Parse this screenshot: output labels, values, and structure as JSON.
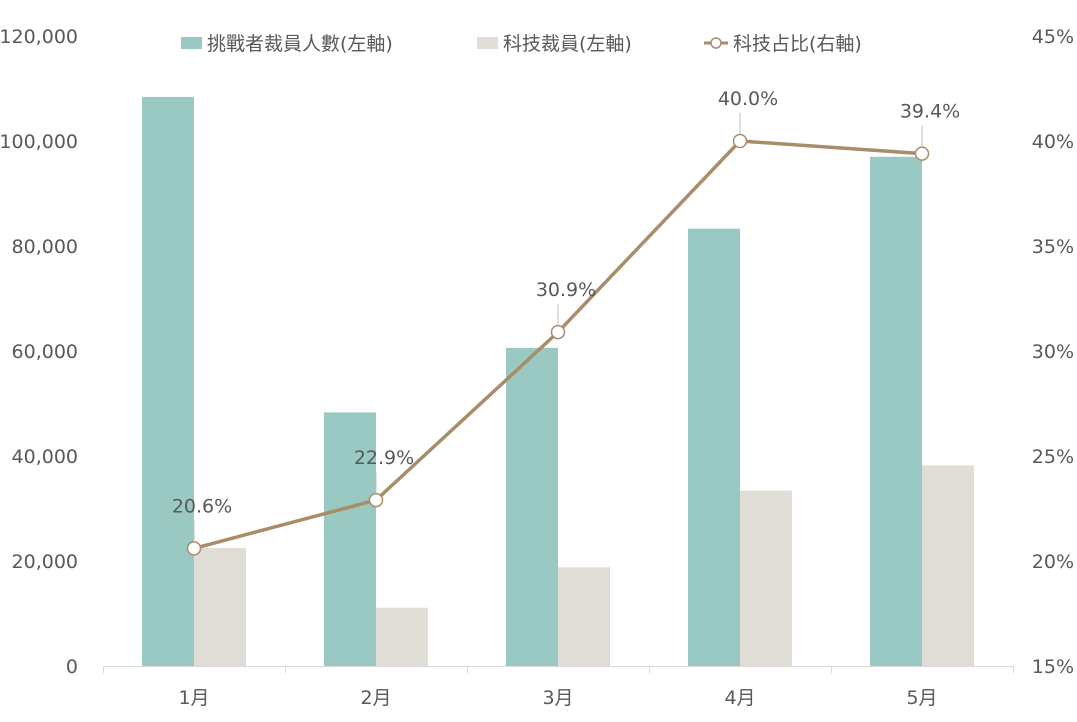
{
  "chart_data": {
    "type": "bar",
    "combo": "bar-line-dual-axis",
    "categories": [
      "1月",
      "2月",
      "3月",
      "4月",
      "5月"
    ],
    "series": [
      {
        "name": "挑戰者裁員人數(左軸)",
        "type": "bar",
        "axis": "left",
        "color": "#9ac8c3",
        "values": [
          108400,
          48300,
          60600,
          83300,
          97000
        ]
      },
      {
        "name": "科技裁員(左軸)",
        "type": "bar",
        "axis": "left",
        "color": "#e0ddd7",
        "values": [
          22500,
          11100,
          18800,
          33400,
          38200
        ]
      },
      {
        "name": "科技占比(右軸)",
        "type": "line",
        "axis": "right",
        "color": "#a78e68",
        "values": [
          20.6,
          22.9,
          30.9,
          40.0,
          39.4
        ],
        "labels": [
          "20.6%",
          "22.9%",
          "30.9%",
          "40.0%",
          "39.4%"
        ]
      }
    ],
    "y_left": {
      "min": 0,
      "max": 120000,
      "ticks": [
        0,
        20000,
        40000,
        60000,
        80000,
        100000,
        120000
      ],
      "tick_labels": [
        "0",
        "20,000",
        "40,000",
        "60,000",
        "80,000",
        "100,000",
        "120,000"
      ]
    },
    "y_right": {
      "min": 15,
      "max": 45,
      "ticks": [
        15,
        20,
        25,
        30,
        35,
        40,
        45
      ],
      "tick_labels": [
        "15%",
        "20%",
        "25%",
        "30%",
        "35%",
        "40%",
        "45%"
      ]
    },
    "grid": false,
    "legend_position": "top",
    "title": "",
    "xlabel": "",
    "ylabel": ""
  }
}
